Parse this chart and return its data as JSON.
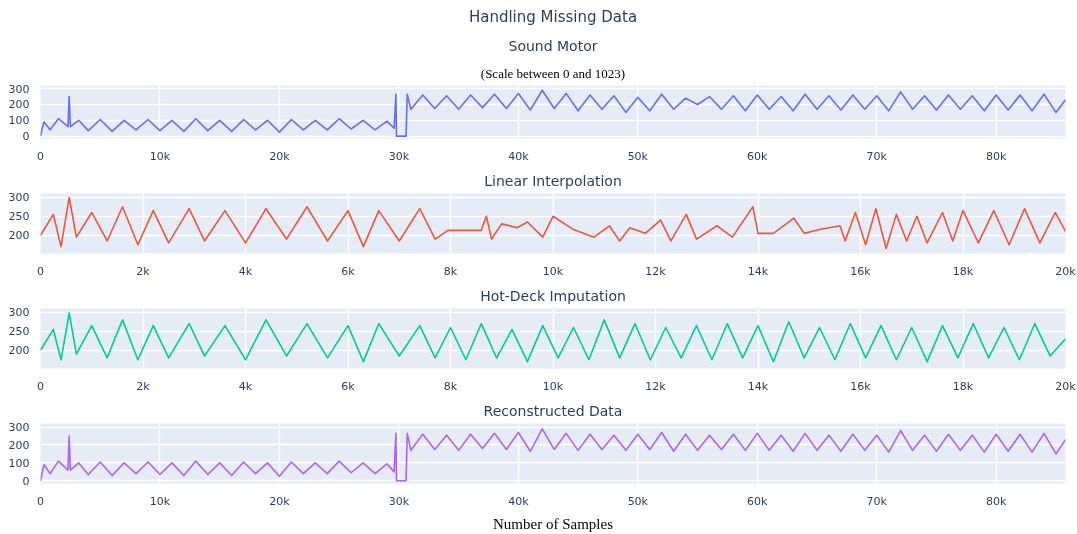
{
  "chart_data": [
    {
      "type": "line",
      "title": "Sound Motor",
      "subtitle": "(Scale between 0 and 1023)",
      "annotations": [
        "Handling Missing Data"
      ],
      "grid": true,
      "xlim": [
        0,
        85800
      ],
      "ylim": [
        -15,
        320
      ],
      "yticks": [
        0,
        100,
        200,
        300
      ],
      "xticks": [
        0,
        {
          "value": 10000,
          "label": "10k"
        },
        {
          "value": 20000,
          "label": "20k"
        },
        {
          "value": 30000,
          "label": "30k"
        },
        {
          "value": 40000,
          "label": "40k"
        },
        {
          "value": 50000,
          "label": "50k"
        },
        {
          "value": 60000,
          "label": "60k"
        },
        {
          "value": 70000,
          "label": "70k"
        },
        {
          "value": 80000,
          "label": "80k"
        }
      ],
      "series": [
        {
          "color": "#636efa",
          "x": [
            0,
            150,
            300,
            800,
            1500,
            2300,
            2400,
            2500,
            3200,
            4000,
            5000,
            6000,
            7000,
            8000,
            9000,
            10000,
            11000,
            12000,
            13000,
            14000,
            15000,
            16000,
            17000,
            18000,
            19000,
            20000,
            21000,
            22000,
            23000,
            24000,
            25000,
            26000,
            27000,
            28000,
            29000,
            29600,
            29750,
            29800,
            30600,
            30700,
            31000,
            32000,
            33000,
            34000,
            35000,
            36000,
            37000,
            38000,
            39000,
            40000,
            41000,
            42000,
            43000,
            44000,
            45000,
            46000,
            47000,
            48000,
            49000,
            50000,
            51000,
            52000,
            53000,
            54000,
            55000,
            56000,
            57000,
            58000,
            59000,
            60000,
            61000,
            62000,
            63000,
            64000,
            65000,
            66000,
            67000,
            68000,
            69000,
            70000,
            71000,
            72000,
            73000,
            74000,
            75000,
            76000,
            77000,
            78000,
            79000,
            80000,
            81000,
            82000,
            83000,
            84000,
            85000,
            85800
          ],
          "values": [
            0,
            50,
            90,
            40,
            110,
            60,
            250,
            60,
            100,
            35,
            105,
            30,
            100,
            40,
            105,
            35,
            100,
            30,
            110,
            35,
            100,
            30,
            105,
            40,
            100,
            25,
            105,
            40,
            100,
            40,
            110,
            45,
            100,
            40,
            95,
            50,
            265,
            0,
            0,
            265,
            170,
            260,
            175,
            255,
            170,
            260,
            180,
            265,
            175,
            270,
            165,
            290,
            175,
            270,
            160,
            260,
            170,
            255,
            150,
            245,
            160,
            265,
            170,
            240,
            200,
            250,
            170,
            255,
            160,
            260,
            170,
            250,
            160,
            265,
            170,
            255,
            165,
            260,
            170,
            255,
            160,
            280,
            170,
            255,
            165,
            260,
            170,
            255,
            160,
            260,
            165,
            260,
            160,
            265,
            150,
            230
          ]
        }
      ]
    },
    {
      "type": "line",
      "title": "Linear Interpolation",
      "grid": true,
      "xlim": [
        0,
        20000
      ],
      "ylim": [
        152,
        310
      ],
      "yticks": [
        200,
        250,
        300
      ],
      "xticks": [
        0,
        {
          "value": 2000,
          "label": "2k"
        },
        {
          "value": 4000,
          "label": "4k"
        },
        {
          "value": 6000,
          "label": "6k"
        },
        {
          "value": 8000,
          "label": "8k"
        },
        {
          "value": 10000,
          "label": "10k"
        },
        {
          "value": 12000,
          "label": "12k"
        },
        {
          "value": 14000,
          "label": "14k"
        },
        {
          "value": 16000,
          "label": "16k"
        },
        {
          "value": 18000,
          "label": "18k"
        },
        {
          "value": 20000,
          "label": "20k"
        }
      ],
      "series": [
        {
          "color": "#ef553b",
          "x": [
            0,
            250,
            400,
            560,
            700,
            1000,
            1300,
            1600,
            1900,
            2200,
            2500,
            2900,
            3200,
            3600,
            4000,
            4400,
            4800,
            5200,
            5600,
            6000,
            6300,
            6600,
            7000,
            7400,
            7700,
            7950,
            8600,
            8700,
            8800,
            9000,
            9300,
            9500,
            9800,
            10000,
            10400,
            10800,
            11100,
            11300,
            11500,
            11800,
            12100,
            12300,
            12600,
            12800,
            13200,
            13500,
            13900,
            14000,
            14300,
            14700,
            14900,
            15200,
            15600,
            15700,
            15900,
            16100,
            16300,
            16500,
            16700,
            16900,
            17100,
            17300,
            17600,
            17800,
            18000,
            18300,
            18600,
            18900,
            19200,
            19500,
            19800,
            20000
          ],
          "values": [
            200,
            255,
            170,
            300,
            195,
            260,
            185,
            275,
            175,
            265,
            180,
            270,
            185,
            265,
            180,
            270,
            190,
            275,
            185,
            265,
            170,
            265,
            185,
            270,
            190,
            213,
            213,
            250,
            190,
            230,
            220,
            235,
            195,
            250,
            215,
            195,
            225,
            185,
            220,
            205,
            240,
            185,
            255,
            190,
            225,
            195,
            275,
            205,
            205,
            245,
            205,
            215,
            225,
            185,
            260,
            175,
            270,
            165,
            255,
            185,
            250,
            180,
            260,
            185,
            265,
            180,
            265,
            175,
            270,
            180,
            260,
            210
          ]
        }
      ]
    },
    {
      "type": "line",
      "title": "Hot-Deck Imputation",
      "grid": true,
      "xlim": [
        0,
        20000
      ],
      "ylim": [
        152,
        310
      ],
      "yticks": [
        200,
        250,
        300
      ],
      "xticks": [
        0,
        {
          "value": 2000,
          "label": "2k"
        },
        {
          "value": 4000,
          "label": "4k"
        },
        {
          "value": 6000,
          "label": "6k"
        },
        {
          "value": 8000,
          "label": "8k"
        },
        {
          "value": 10000,
          "label": "10k"
        },
        {
          "value": 12000,
          "label": "12k"
        },
        {
          "value": 14000,
          "label": "14k"
        },
        {
          "value": 16000,
          "label": "16k"
        },
        {
          "value": 18000,
          "label": "18k"
        },
        {
          "value": 20000,
          "label": "20k"
        }
      ],
      "series": [
        {
          "color": "#00cc96",
          "x": [
            0,
            250,
            400,
            560,
            700,
            1000,
            1300,
            1600,
            1900,
            2200,
            2500,
            2900,
            3200,
            3600,
            4000,
            4400,
            4800,
            5200,
            5600,
            6000,
            6300,
            6600,
            7000,
            7400,
            7700,
            8000,
            8300,
            8600,
            8900,
            9200,
            9500,
            9800,
            10100,
            10400,
            10700,
            11000,
            11300,
            11600,
            11900,
            12200,
            12500,
            12800,
            13100,
            13400,
            13700,
            14000,
            14300,
            14600,
            14900,
            15200,
            15500,
            15800,
            16100,
            16400,
            16700,
            17000,
            17300,
            17600,
            17900,
            18200,
            18500,
            18800,
            19100,
            19400,
            19700,
            20000
          ],
          "values": [
            200,
            255,
            175,
            298,
            190,
            265,
            180,
            280,
            175,
            265,
            180,
            270,
            185,
            265,
            175,
            280,
            185,
            270,
            180,
            265,
            170,
            270,
            185,
            265,
            180,
            260,
            175,
            270,
            180,
            255,
            170,
            265,
            180,
            260,
            175,
            280,
            180,
            270,
            175,
            260,
            180,
            265,
            175,
            270,
            180,
            265,
            170,
            275,
            180,
            260,
            175,
            270,
            180,
            265,
            175,
            260,
            170,
            265,
            180,
            270,
            180,
            260,
            175,
            270,
            185,
            230
          ]
        }
      ]
    },
    {
      "type": "line",
      "title": "Reconstructed Data",
      "xlabel": "Number of Samples",
      "grid": true,
      "xlim": [
        0,
        85800
      ],
      "ylim": [
        -15,
        320
      ],
      "yticks": [
        0,
        100,
        200,
        300
      ],
      "xticks": [
        0,
        {
          "value": 10000,
          "label": "10k"
        },
        {
          "value": 20000,
          "label": "20k"
        },
        {
          "value": 30000,
          "label": "30k"
        },
        {
          "value": 40000,
          "label": "40k"
        },
        {
          "value": 50000,
          "label": "50k"
        },
        {
          "value": 60000,
          "label": "60k"
        },
        {
          "value": 70000,
          "label": "70k"
        },
        {
          "value": 80000,
          "label": "80k"
        }
      ],
      "series": [
        {
          "color": "#ab63fa",
          "x": [
            0,
            150,
            300,
            800,
            1500,
            2300,
            2400,
            2500,
            3200,
            4000,
            5000,
            6000,
            7000,
            8000,
            9000,
            10000,
            11000,
            12000,
            13000,
            14000,
            15000,
            16000,
            17000,
            18000,
            19000,
            20000,
            21000,
            22000,
            23000,
            24000,
            25000,
            26000,
            27000,
            28000,
            29000,
            29600,
            29750,
            29800,
            30600,
            30700,
            31000,
            32000,
            33000,
            34000,
            35000,
            36000,
            37000,
            38000,
            39000,
            40000,
            41000,
            42000,
            43000,
            44000,
            45000,
            46000,
            47000,
            48000,
            49000,
            50000,
            51000,
            52000,
            53000,
            54000,
            55000,
            56000,
            57000,
            58000,
            59000,
            60000,
            61000,
            62000,
            63000,
            64000,
            65000,
            66000,
            67000,
            68000,
            69000,
            70000,
            71000,
            72000,
            73000,
            74000,
            75000,
            76000,
            77000,
            78000,
            79000,
            80000,
            81000,
            82000,
            83000,
            84000,
            85000,
            85800
          ],
          "values": [
            0,
            50,
            90,
            40,
            110,
            60,
            250,
            60,
            100,
            35,
            105,
            30,
            100,
            40,
            105,
            35,
            100,
            30,
            110,
            35,
            100,
            30,
            105,
            40,
            100,
            25,
            105,
            40,
            100,
            40,
            110,
            45,
            100,
            40,
            95,
            50,
            265,
            0,
            0,
            265,
            170,
            260,
            175,
            255,
            170,
            260,
            180,
            265,
            175,
            270,
            165,
            290,
            175,
            265,
            170,
            260,
            175,
            255,
            170,
            260,
            175,
            270,
            165,
            260,
            170,
            255,
            175,
            260,
            170,
            265,
            170,
            255,
            165,
            265,
            170,
            255,
            165,
            260,
            170,
            255,
            160,
            280,
            170,
            255,
            165,
            260,
            170,
            255,
            160,
            260,
            165,
            260,
            160,
            265,
            150,
            230
          ]
        }
      ]
    }
  ]
}
